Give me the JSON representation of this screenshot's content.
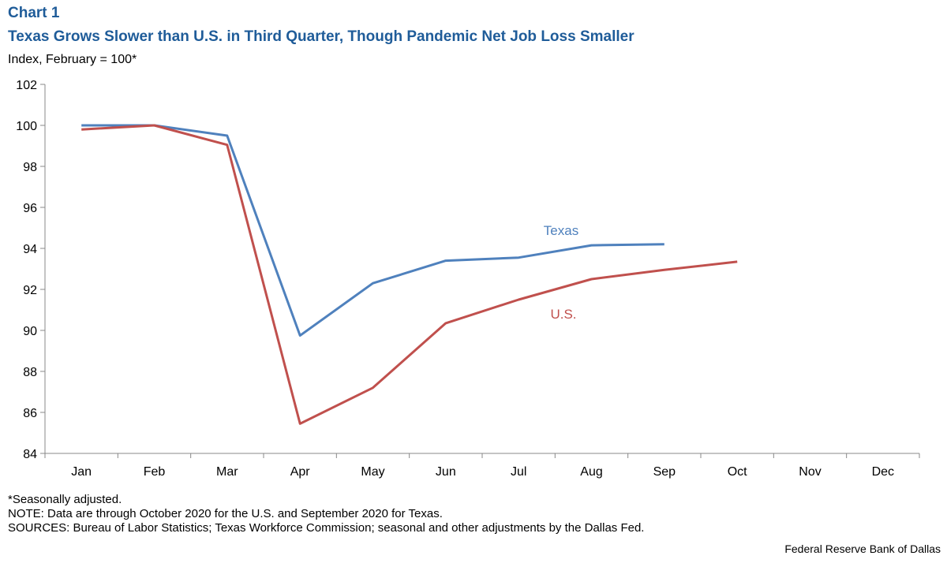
{
  "chart_data": {
    "type": "line",
    "chart_number": "Chart 1",
    "title": "Texas Grows Slower than U.S. in Third Quarter, Though Pandemic Net Job Loss Smaller",
    "subtitle": "Index, February = 100*",
    "categories": [
      "Jan",
      "Feb",
      "Mar",
      "Apr",
      "May",
      "Jun",
      "Jul",
      "Aug",
      "Sep",
      "Oct",
      "Nov",
      "Dec"
    ],
    "series": [
      {
        "name": "Texas",
        "color": "#4f81bd",
        "values": [
          100.0,
          100.0,
          99.5,
          89.75,
          92.3,
          93.4,
          93.55,
          94.15,
          94.2,
          null,
          null,
          null
        ]
      },
      {
        "name": "U.S.",
        "color": "#c0504d",
        "values": [
          99.8,
          100.0,
          99.05,
          85.45,
          87.2,
          90.35,
          91.5,
          92.5,
          92.95,
          93.35,
          null,
          null
        ]
      }
    ],
    "ylim": [
      84,
      102
    ],
    "yticks": [
      84,
      86,
      88,
      90,
      92,
      94,
      96,
      98,
      100,
      102
    ],
    "grid": false,
    "notes": [
      "*Seasonally adjusted.",
      "NOTE: Data are through October 2020 for the U.S. and September 2020 for Texas.",
      "SOURCES: Bureau of Labor Statistics; Texas Workforce Commission; seasonal and other adjustments by the Dallas Fed."
    ],
    "credit": "Federal Reserve Bank of Dallas"
  }
}
